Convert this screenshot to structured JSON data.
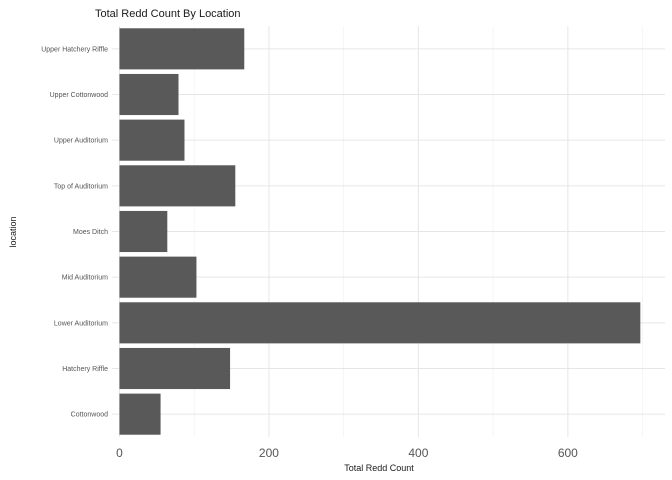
{
  "chart_data": {
    "type": "bar",
    "orientation": "horizontal",
    "title": "Total Redd Count By Location",
    "xlabel": "Total Redd Count",
    "ylabel": "location",
    "categories": [
      "Cottonwood",
      "Hatchery Riffle",
      "Lower Auditorium",
      "Mid Auditorium",
      "Moes Ditch",
      "Top of Auditorium",
      "Upper Auditorium",
      "Upper Cottonwood",
      "Upper Hatchery Riffle"
    ],
    "values": [
      55,
      148,
      697,
      103,
      64,
      155,
      87,
      79,
      167
    ],
    "x_ticks": [
      "0",
      "200",
      "400",
      "600"
    ],
    "xlim": [
      -10,
      730
    ],
    "grid": true,
    "bar_color": "#595959"
  }
}
